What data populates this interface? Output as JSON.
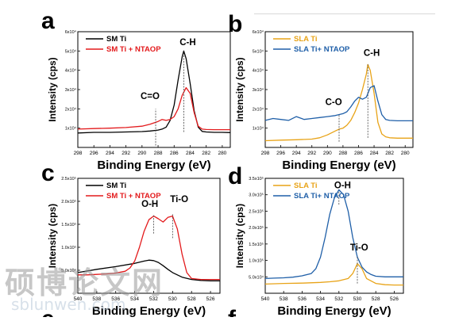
{
  "chart_data": [
    {
      "panel_letter": "a",
      "type": "line",
      "xlabel": "Binding Energy (eV)",
      "ylabel": "Intensity (cps)",
      "xlim": [
        298,
        279
      ],
      "ylim": [
        0,
        60000
      ],
      "xticks": [
        298,
        296,
        294,
        292,
        290,
        288,
        286,
        284,
        282,
        280
      ],
      "yticks": [
        {
          "v": 10000,
          "label": "1x10⁴"
        },
        {
          "v": 20000,
          "label": "2x10⁴"
        },
        {
          "v": 30000,
          "label": "3x10⁴"
        },
        {
          "v": 40000,
          "label": "4x10⁴"
        },
        {
          "v": 50000,
          "label": "5x10⁴"
        },
        {
          "v": 60000,
          "label": "6x10⁴"
        }
      ],
      "legend_position": "top-left",
      "series": [
        {
          "name": "SM Ti",
          "color": "#000000",
          "x": [
            298,
            296,
            294,
            292,
            290,
            289,
            288,
            287.5,
            287,
            286.5,
            286,
            285.5,
            285,
            284.8,
            284.5,
            284,
            283.5,
            283,
            282.5,
            282,
            281,
            280,
            279
          ],
          "y": [
            7500,
            7800,
            7800,
            8000,
            8200,
            8500,
            9000,
            9500,
            10500,
            14000,
            22000,
            35000,
            47000,
            50000,
            46000,
            33000,
            19000,
            10500,
            8300,
            8000,
            7800,
            7800,
            7700
          ]
        },
        {
          "name": "SM Ti + NTAOP",
          "color": "#e31a1c",
          "x": [
            298,
            296,
            294,
            292,
            290,
            289,
            288,
            287.5,
            287,
            286.5,
            286,
            285.5,
            285,
            284.5,
            284,
            283.5,
            283,
            282.5,
            282,
            281,
            280,
            279
          ],
          "y": [
            9500,
            9800,
            10000,
            10300,
            11000,
            12000,
            13500,
            14500,
            14000,
            14500,
            16000,
            20000,
            27000,
            31000,
            28000,
            18000,
            11000,
            9500,
            9300,
            9200,
            9200,
            9200
          ]
        }
      ],
      "annotations": [
        {
          "text": "C-H",
          "x": 284.3,
          "y": 53000,
          "line_x": 284.8,
          "line_from": 8000,
          "line_to": 50000
        },
        {
          "text": "C=O",
          "x": 289.0,
          "y": 25000,
          "line_x": 288.3,
          "line_from": 1000,
          "line_to": 20000
        }
      ]
    },
    {
      "panel_letter": "b",
      "type": "line",
      "xlabel": "Binding Energy (eV)",
      "ylabel": "Intensity (cps)",
      "xlim": [
        298,
        279
      ],
      "ylim": [
        0,
        60000
      ],
      "xticks": [
        298,
        296,
        294,
        292,
        290,
        288,
        286,
        284,
        282,
        280
      ],
      "yticks": [
        {
          "v": 10000,
          "label": "1x10⁴"
        },
        {
          "v": 20000,
          "label": "2x10⁴"
        },
        {
          "v": 30000,
          "label": "3x10⁴"
        },
        {
          "v": 40000,
          "label": "4x10⁴"
        },
        {
          "v": 50000,
          "label": "5x10⁴"
        },
        {
          "v": 60000,
          "label": "6x10⁴"
        }
      ],
      "legend_position": "top-left",
      "series": [
        {
          "name": "SLA Ti",
          "color": "#e8a317",
          "x": [
            298,
            296,
            294,
            292,
            291,
            290,
            289,
            288.5,
            288,
            287.5,
            287,
            286.5,
            286,
            285.5,
            285,
            284.8,
            284.5,
            284,
            283.5,
            283,
            282.5,
            282,
            281,
            280,
            279
          ],
          "y": [
            3500,
            3800,
            4000,
            4300,
            5000,
            6500,
            8500,
            9500,
            10000,
            11500,
            14000,
            18000,
            23000,
            30000,
            38000,
            43000,
            40000,
            28000,
            13000,
            7000,
            5500,
            5000,
            4800,
            4800,
            4800
          ]
        },
        {
          "name": "SLA Ti+ NTAOP",
          "color": "#1f5fa8",
          "x": [
            298,
            297,
            296,
            295,
            294,
            293,
            292,
            291,
            290,
            289,
            288,
            287.5,
            287,
            286.5,
            286,
            285.5,
            285,
            284.5,
            284,
            283.5,
            283,
            282.5,
            282,
            281,
            280,
            279
          ],
          "y": [
            14000,
            15000,
            14500,
            14000,
            16000,
            14500,
            15000,
            15500,
            16000,
            16500,
            17500,
            18500,
            21000,
            24000,
            26000,
            25000,
            26000,
            31000,
            32000,
            24000,
            17000,
            14500,
            14000,
            13800,
            13800,
            13800
          ]
        }
      ],
      "annotations": [
        {
          "text": "C-H",
          "x": 284.3,
          "y": 47500,
          "line_x": 284.8,
          "line_from": 5000,
          "line_to": 43000
        },
        {
          "text": "C-O",
          "x": 289.2,
          "y": 22000,
          "line_x": 288.5,
          "line_from": 3000,
          "line_to": 17000
        }
      ]
    },
    {
      "panel_letter": "c",
      "type": "line",
      "xlabel": "Binding Energy (eV)",
      "ylabel": "Intensity (cps)",
      "xlim": [
        540,
        525
      ],
      "ylim": [
        0,
        250000
      ],
      "xticks": [
        540,
        538,
        536,
        534,
        532,
        530,
        528,
        526
      ],
      "yticks": [
        {
          "v": 50000,
          "label": "5.0x10⁴"
        },
        {
          "v": 100000,
          "label": "1.0x10⁵"
        },
        {
          "v": 150000,
          "label": "1.5x10⁵"
        },
        {
          "v": 200000,
          "label": "2.0x10⁵"
        },
        {
          "v": 250000,
          "label": "2.5x10⁵"
        }
      ],
      "legend_position": "top-left",
      "series": [
        {
          "name": "SM Ti",
          "color": "#000000",
          "x": [
            540,
            538,
            536,
            534,
            533,
            532.5,
            532,
            531.5,
            531,
            530.5,
            530,
            529,
            528,
            527,
            526,
            525
          ],
          "y": [
            45000,
            52000,
            58000,
            65000,
            70000,
            72000,
            71000,
            67000,
            60000,
            52000,
            45000,
            35000,
            30000,
            28000,
            27000,
            27000
          ]
        },
        {
          "name": "SM Ti + NTAOP",
          "color": "#e31a1c",
          "x": [
            540,
            539,
            538,
            537,
            536,
            535,
            534.5,
            534,
            533.5,
            533,
            532.5,
            532,
            531.5,
            531,
            530.5,
            530,
            529.5,
            529,
            528.5,
            528,
            527,
            526,
            525
          ],
          "y": [
            40000,
            40000,
            41000,
            42000,
            44000,
            48000,
            55000,
            70000,
            100000,
            135000,
            160000,
            168000,
            162000,
            155000,
            165000,
            168000,
            140000,
            85000,
            45000,
            32000,
            30000,
            30000,
            30000
          ]
        }
      ],
      "annotations": [
        {
          "text": "O-H",
          "x": 532.4,
          "y": 188000,
          "line_x": 532.0,
          "line_from": 130000,
          "line_to": 170000
        },
        {
          "text": "Ti-O",
          "x": 529.3,
          "y": 198000,
          "line_x": 530.0,
          "line_from": 120000,
          "line_to": 172000
        }
      ]
    },
    {
      "panel_letter": "d",
      "type": "line",
      "xlabel": "Binding Energy (eV)",
      "ylabel": "Intensity (cps)",
      "xlim": [
        540,
        525
      ],
      "ylim": [
        0,
        350000
      ],
      "xticks": [
        540,
        538,
        536,
        534,
        532,
        530,
        528,
        526
      ],
      "yticks": [
        {
          "v": 50000,
          "label": "5.0x10⁴"
        },
        {
          "v": 100000,
          "label": "1.0x10⁵"
        },
        {
          "v": 150000,
          "label": "1.5x10⁵"
        },
        {
          "v": 200000,
          "label": "2.0x10⁵"
        },
        {
          "v": 250000,
          "label": "2.5x10⁵"
        },
        {
          "v": 300000,
          "label": "3.0x10⁵"
        },
        {
          "v": 350000,
          "label": "3.5x10⁵"
        }
      ],
      "legend_position": "top-left",
      "series": [
        {
          "name": "SLA Ti",
          "color": "#e8a317",
          "x": [
            540,
            538,
            536,
            534,
            533,
            532,
            531,
            530.5,
            530,
            529.5,
            529,
            528,
            527,
            526,
            525
          ],
          "y": [
            28000,
            30000,
            31000,
            33000,
            35000,
            38000,
            45000,
            60000,
            90000,
            75000,
            45000,
            30000,
            26000,
            25000,
            25000
          ]
        },
        {
          "name": "SLA Ti+ NTAOP",
          "color": "#1f5fa8",
          "x": [
            540,
            539,
            538,
            537,
            536,
            535,
            534.5,
            534,
            533.5,
            533,
            532.5,
            532,
            531.5,
            531,
            530.5,
            530,
            529.5,
            529,
            528.5,
            528,
            527,
            526,
            525
          ],
          "y": [
            45000,
            46000,
            47000,
            49000,
            53000,
            60000,
            75000,
            110000,
            170000,
            240000,
            290000,
            315000,
            300000,
            250000,
            170000,
            110000,
            80000,
            65000,
            57000,
            52000,
            50000,
            50000,
            50000
          ]
        }
      ],
      "annotations": [
        {
          "text": "O-H",
          "x": 531.6,
          "y": 320000,
          "line_x": 532.0,
          "line_from": 270000,
          "line_to": 312000
        },
        {
          "text": "Ti-O",
          "x": 529.8,
          "y": 130000,
          "line_x": 530.0,
          "line_from": 30000,
          "line_to": 110000
        }
      ]
    }
  ],
  "watermark": {
    "cn": "硕博论文网",
    "url": "sblunwen.com"
  },
  "next_panel_letters": [
    "e",
    "f"
  ]
}
